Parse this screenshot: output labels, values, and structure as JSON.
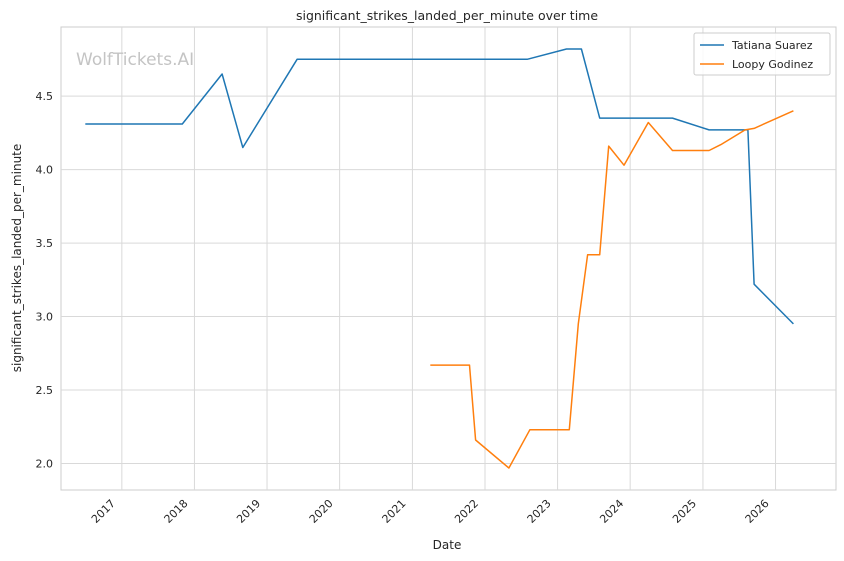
{
  "chart_data": {
    "type": "line",
    "title": "significant_strikes_landed_per_minute over time",
    "xlabel": "Date",
    "ylabel": "significant_strikes_landed_per_minute",
    "watermark": "WolfTickets.AI",
    "x_ticks": [
      "2017",
      "2018",
      "2019",
      "2020",
      "2021",
      "2022",
      "2023",
      "2024",
      "2025",
      "2026"
    ],
    "y_ticks": [
      "2.0",
      "2.5",
      "3.0",
      "3.5",
      "4.0",
      "4.5"
    ],
    "ylim": [
      1.82,
      4.97
    ],
    "xlim": [
      "2016-03-01",
      "2026-11-01"
    ],
    "grid": true,
    "legend_position": "top-right",
    "series": [
      {
        "name": "Tatiana Suarez",
        "color": "#1f77b4",
        "points": [
          [
            "2016-07-01",
            4.31
          ],
          [
            "2017-11-01",
            4.31
          ],
          [
            "2018-05-20",
            4.65
          ],
          [
            "2018-09-01",
            4.15
          ],
          [
            "2019-06-01",
            4.75
          ],
          [
            "2022-08-01",
            4.75
          ],
          [
            "2023-02-15",
            4.82
          ],
          [
            "2023-05-01",
            4.82
          ],
          [
            "2023-08-01",
            4.35
          ],
          [
            "2024-08-01",
            4.35
          ],
          [
            "2025-02-01",
            4.27
          ],
          [
            "2025-08-15",
            4.27
          ],
          [
            "2025-09-15",
            3.22
          ],
          [
            "2026-04-01",
            2.95
          ]
        ]
      },
      {
        "name": "Loopy Godinez",
        "color": "#ff7f0e",
        "points": [
          [
            "2021-04-01",
            2.67
          ],
          [
            "2021-10-15",
            2.67
          ],
          [
            "2021-11-15",
            2.16
          ],
          [
            "2022-05-01",
            1.97
          ],
          [
            "2022-08-15",
            2.23
          ],
          [
            "2023-03-01",
            2.23
          ],
          [
            "2023-04-15",
            2.95
          ],
          [
            "2023-06-01",
            3.42
          ],
          [
            "2023-08-01",
            3.42
          ],
          [
            "2023-09-15",
            4.16
          ],
          [
            "2023-12-01",
            4.03
          ],
          [
            "2024-04-01",
            4.32
          ],
          [
            "2024-08-01",
            4.13
          ],
          [
            "2025-02-01",
            4.13
          ],
          [
            "2025-04-01",
            4.17
          ],
          [
            "2025-08-01",
            4.27
          ],
          [
            "2025-09-15",
            4.28
          ],
          [
            "2026-04-01",
            4.4
          ]
        ]
      }
    ]
  }
}
